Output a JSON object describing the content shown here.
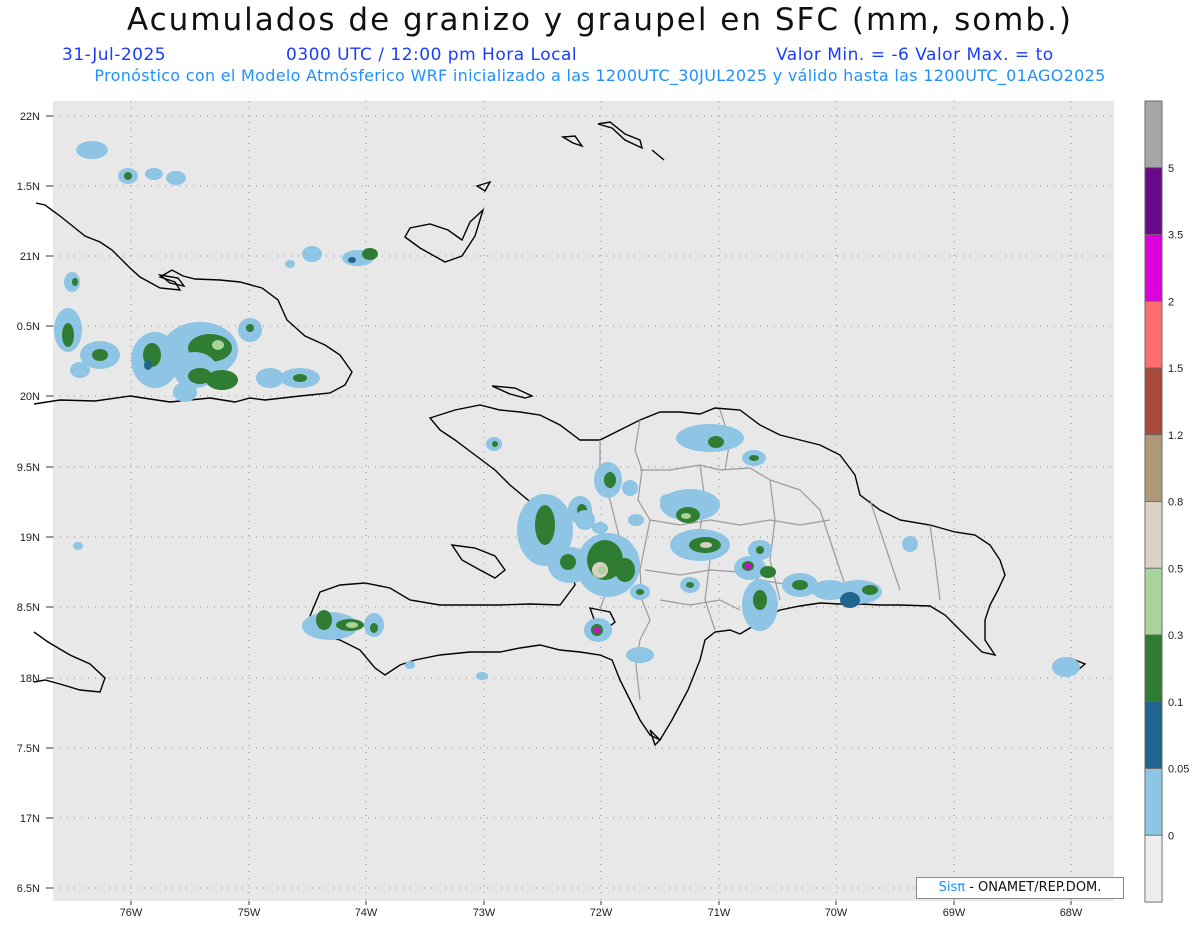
{
  "header": {
    "title": "Acumulados de granizo y graupel en SFC (mm, somb.)",
    "date": "31-Jul-2025",
    "time": "0300 UTC / 12:00 pm Hora Local",
    "minmax": "Valor Min. = -6  Valor Max. = to",
    "forecast": "Pronóstico con el Modelo Atmósferico WRF inicializado a las 1200UTC_30JUL2025 y válido hasta las  1200UTC_01AGO2025"
  },
  "map": {
    "lat_labels": [
      "22N",
      "1.5N",
      "21N",
      "0.5N",
      "20N",
      "9.5N",
      "19N",
      "8.5N",
      "18N",
      "7.5N",
      "17N",
      "6.5N"
    ],
    "lon_labels": [
      "76W",
      "75W",
      "74W",
      "73W",
      "72W",
      "71W",
      "70W",
      "69W",
      "68W"
    ],
    "background_color": "#e8e8e8",
    "coast_color": "#000000",
    "border_color": "#9a9a9a"
  },
  "legend": {
    "labels": [
      "5",
      "3.5",
      "2",
      "1.5",
      "1.2",
      "0.8",
      "0.5",
      "0.3",
      "0.1",
      "0.05",
      "0"
    ],
    "colors": [
      "#a6a6a6",
      "#6a0a8a",
      "#dd00dd",
      "#ff6e6e",
      "#a8493a",
      "#ad9879",
      "#d9d1c1",
      "#a8d39a",
      "#2e7d32",
      "#1f6590",
      "#8ec4e4",
      "#eeeeee"
    ]
  },
  "credit": {
    "sis": "Sisπ",
    "text": "- ONAMET/REP.DOM."
  }
}
